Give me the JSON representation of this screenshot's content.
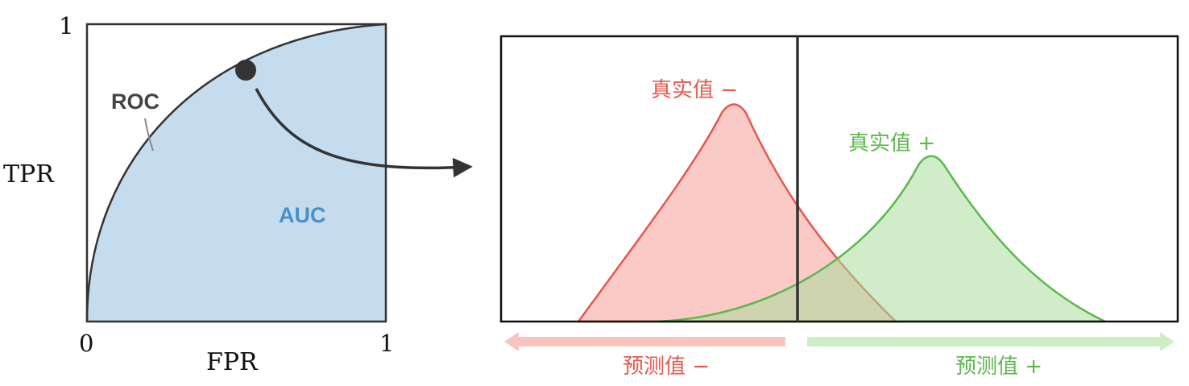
{
  "roc_panel": {
    "y_axis_label": "TPR",
    "x_axis_label": "FPR",
    "y_max_tick": "1",
    "x_min_tick": "0",
    "x_max_tick": "1",
    "curve_label": "ROC",
    "area_label": "AUC",
    "area_color": "#c5dcee",
    "area_label_color": "#4a90c8",
    "curve_color": "#333333"
  },
  "distribution_panel": {
    "negative_class_label": "真实值 −",
    "positive_class_label": "真实值 +",
    "negative_prediction_label": "预测值 −",
    "positive_prediction_label": "预测值 +",
    "negative_color": "#e8574e",
    "negative_fill": "#f9c4c0",
    "positive_color": "#5cb84e",
    "positive_fill": "#c8eac0",
    "threshold_color": "#333333"
  },
  "connector": {
    "icon": "curved-arrow-icon"
  }
}
